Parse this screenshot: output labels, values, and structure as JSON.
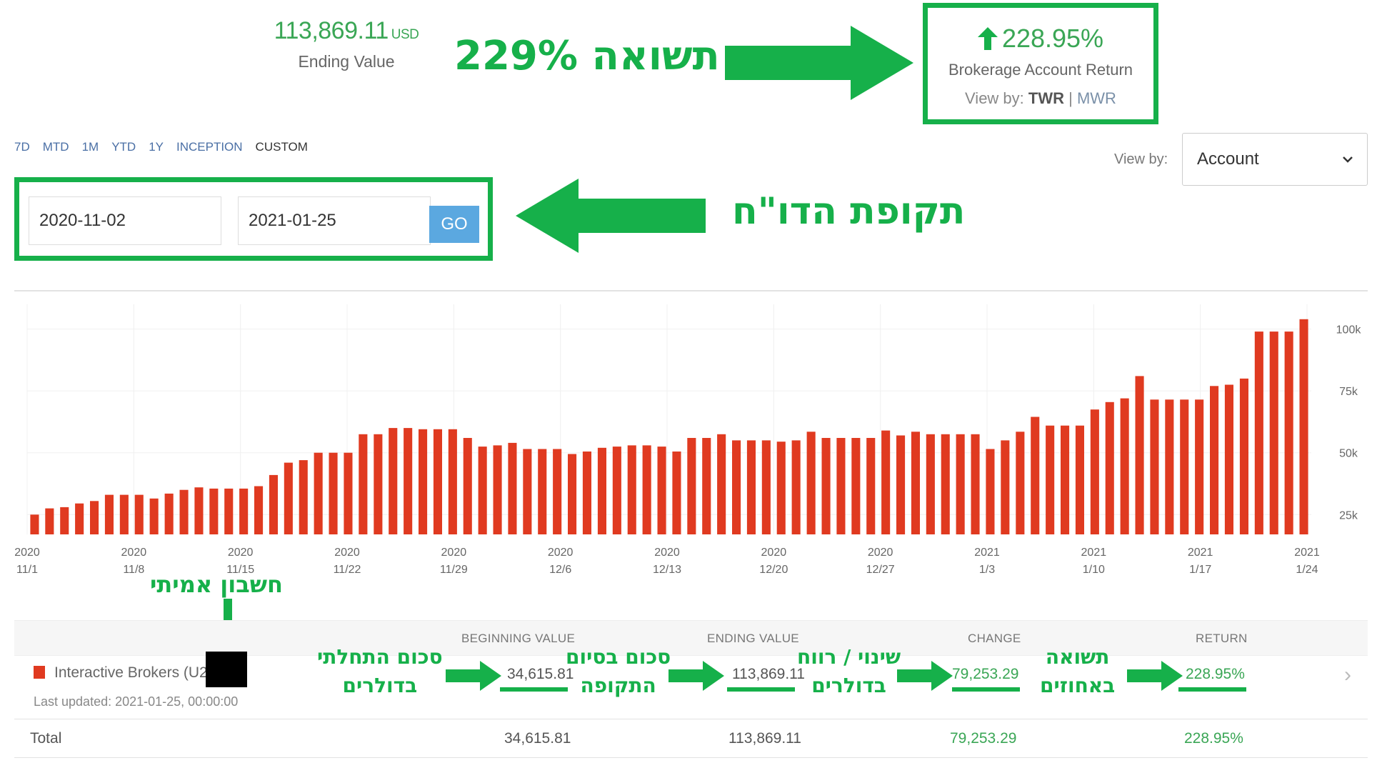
{
  "header": {
    "ending_value_amount": "113,869.11",
    "ending_value_currency": "USD",
    "ending_value_label": "Ending Value",
    "return_pct": "228.95%",
    "return_label": "Brokerage Account Return",
    "view_by_prefix": "View by:",
    "view_by_twr": "TWR",
    "view_by_sep": "|",
    "view_by_mwr": "MWR",
    "annotation_headline": "תשואה 229%"
  },
  "period_tabs": [
    "7D",
    "MTD",
    "1M",
    "YTD",
    "1Y",
    "INCEPTION",
    "CUSTOM"
  ],
  "active_tab": "CUSTOM",
  "view_by": {
    "label": "View by:",
    "selected": "Account"
  },
  "date_range": {
    "start": "2020-11-02",
    "end": "2021-01-25",
    "go_label": "GO",
    "annotation": "תקופת הדו\"ח"
  },
  "colors": {
    "bar": "#e03a20",
    "annotation_green": "#16b04a",
    "value_green": "#3aa655",
    "go_button": "#5ba8e0"
  },
  "chart_data": {
    "type": "bar",
    "x_ticks": [
      {
        "year": "2020",
        "date": "11/1"
      },
      {
        "year": "2020",
        "date": "11/8"
      },
      {
        "year": "2020",
        "date": "11/15"
      },
      {
        "year": "2020",
        "date": "11/22"
      },
      {
        "year": "2020",
        "date": "11/29"
      },
      {
        "year": "2020",
        "date": "12/6"
      },
      {
        "year": "2020",
        "date": "12/13"
      },
      {
        "year": "2020",
        "date": "12/20"
      },
      {
        "year": "2020",
        "date": "12/27"
      },
      {
        "year": "2021",
        "date": "1/3"
      },
      {
        "year": "2021",
        "date": "1/10"
      },
      {
        "year": "2021",
        "date": "1/17"
      },
      {
        "year": "2021",
        "date": "1/24"
      }
    ],
    "y_ticks": [
      "25k",
      "50k",
      "75k",
      "100k"
    ],
    "y_tick_values": [
      25000,
      50000,
      75000,
      100000
    ],
    "ylim": [
      17000,
      110000
    ],
    "x_start": "2020-11-01",
    "x_end": "2021-01-24",
    "values": [
      25000,
      27500,
      28000,
      29500,
      30500,
      33000,
      33000,
      33000,
      31500,
      33500,
      35000,
      36000,
      35500,
      35500,
      35500,
      36500,
      41000,
      46000,
      47000,
      50000,
      50000,
      50000,
      57500,
      57500,
      60000,
      60000,
      59500,
      59500,
      59500,
      56000,
      52500,
      53000,
      54000,
      51500,
      51500,
      51500,
      49500,
      50500,
      52000,
      52500,
      53000,
      53000,
      52500,
      50500,
      56000,
      56000,
      57500,
      55000,
      55000,
      55000,
      54500,
      55000,
      58500,
      56000,
      56000,
      56000,
      56000,
      59000,
      57000,
      58500,
      57500,
      57500,
      57500,
      57500,
      51500,
      55000,
      58500,
      64500,
      61000,
      61000,
      61000,
      67500,
      70500,
      72000,
      81000,
      71500,
      71500,
      71500,
      71500,
      77000,
      77500,
      80000,
      99000,
      99000,
      99000,
      104000
    ]
  },
  "table": {
    "headers": {
      "beginning": "BEGINNING VALUE",
      "ending": "ENDING VALUE",
      "change": "CHANGE",
      "return": "RETURN"
    },
    "account": {
      "name": "Interactive Brokers (U28",
      "last_updated": "Last updated: 2021-01-25, 00:00:00",
      "beginning": "34,615.81",
      "ending": "113,869.11",
      "change": "79,253.29",
      "return": "228.95%"
    },
    "total": {
      "label": "Total",
      "beginning": "34,615.81",
      "ending": "113,869.11",
      "change": "79,253.29",
      "return": "228.95%"
    }
  },
  "annotations": {
    "real_account": "חשבון אמיתי",
    "beginning_line1": "סכום התחלתי",
    "beginning_line2": "בדולרים",
    "ending_line1": "סכום בסיום",
    "ending_line2": "התקופה",
    "change_line1": "שינוי / רווח",
    "change_line2": "בדולרים",
    "return_line1": "תשואה",
    "return_line2": "באחוזים"
  }
}
